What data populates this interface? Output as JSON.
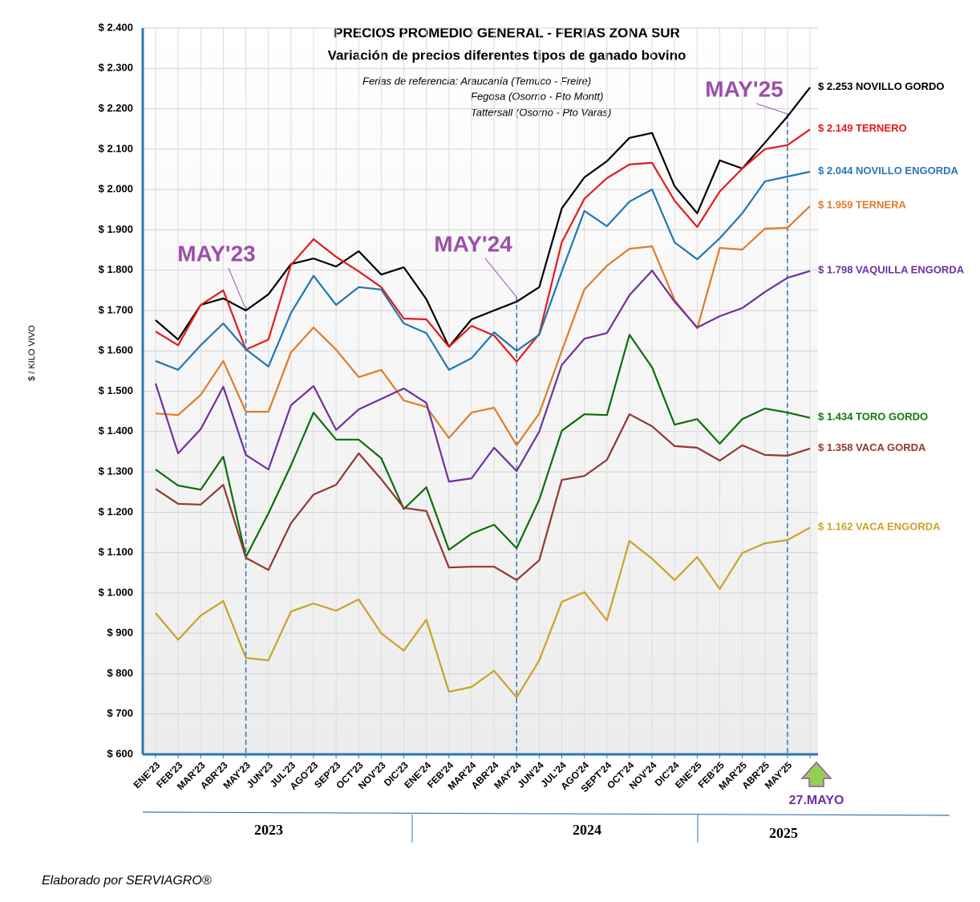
{
  "chart_data": {
    "type": "line",
    "title": "PRECIOS PROMEDIO GENERAL - FERIAS ZONA SUR",
    "subtitle": "Variación  de precios diferentes tipos de ganado bovino",
    "notes": [
      "Ferias de referencia: Araucanía (Temuco - Freire)",
      "Fegosa (Osorno - Pto Montt)",
      "Tattersall (Osorno - Pto Varas)"
    ],
    "ylabel": "$ / KILO VIVO",
    "categories": [
      "ENE'23",
      "FEB'23",
      "MAR'23",
      "ABR'23",
      "MAY'23",
      "JUN'23",
      "JUL'23",
      "AGO'23",
      "SEP'23",
      "OCT'23",
      "NOV'23",
      "DIC'23",
      "ENE'24",
      "FEB'24",
      "MAR'24",
      "ABR'24",
      "MAY'24",
      "JUN'24",
      "JUL'24",
      "AGO'24",
      "SEPT'24",
      "OCT'24",
      "NOV'24",
      "DIC'24",
      "ENE'25",
      "FEB'25",
      "MAR'25",
      "ABR'25",
      "MAY'25",
      null
    ],
    "ylim": [
      600,
      2400
    ],
    "yticks": [
      {
        "value": 600,
        "label": "$ 600"
      },
      {
        "value": 700,
        "label": "$ 700"
      },
      {
        "value": 800,
        "label": "$ 800"
      },
      {
        "value": 900,
        "label": "$ 900"
      },
      {
        "value": 1000,
        "label": "$ 1.000"
      },
      {
        "value": 1100,
        "label": "$ 1.100"
      },
      {
        "value": 1200,
        "label": "$ 1.200"
      },
      {
        "value": 1300,
        "label": "$ 1.300"
      },
      {
        "value": 1400,
        "label": "$ 1.400"
      },
      {
        "value": 1500,
        "label": "$ 1.500"
      },
      {
        "value": 1600,
        "label": "$ 1.600"
      },
      {
        "value": 1700,
        "label": "$ 1.700"
      },
      {
        "value": 1800,
        "label": "$ 1.800"
      },
      {
        "value": 1900,
        "label": "$ 1.900"
      },
      {
        "value": 2000,
        "label": "$ 2.000"
      },
      {
        "value": 2100,
        "label": "$ 2.100"
      },
      {
        "value": 2200,
        "label": "$ 2.200"
      },
      {
        "value": 2300,
        "label": "$ 2.300"
      },
      {
        "value": 2400,
        "label": "$ 2.400"
      }
    ],
    "grid": true,
    "annotations": [
      "MAY'23",
      "MAY'24",
      "MAY'25"
    ],
    "marker_label": "27.MAYO",
    "years": [
      "2023",
      "2024",
      "2025"
    ],
    "footer": "Elaborado por SERVIAGRO®",
    "series": [
      {
        "name": "NOVILLO GORDO",
        "color": "#000000",
        "label_color": "#000000",
        "values": [
          1676,
          1628,
          1714,
          1730,
          1700,
          1740,
          1815,
          1829,
          1809,
          1847,
          1789,
          1807,
          1728,
          1610,
          1678,
          1700,
          1722,
          1758,
          1953,
          2030,
          2070,
          2128,
          2140,
          2008,
          1941,
          2072,
          2052,
          2116,
          2181,
          2253
        ],
        "value_labels": [
          null,
          null,
          null,
          null,
          null,
          null,
          null,
          null,
          null,
          null,
          null,
          null,
          null,
          null,
          null,
          null,
          null,
          null,
          null,
          null,
          null,
          null,
          null,
          null,
          null,
          null,
          null,
          null,
          null,
          "$ 2.253"
        ]
      },
      {
        "name": "TERNERO",
        "color": "#e41a1c",
        "label_color": "#e41a1c",
        "values": [
          1648,
          1614,
          1714,
          1750,
          1603,
          1628,
          1813,
          1877,
          1833,
          1797,
          1758,
          1680,
          1678,
          1610,
          1662,
          1638,
          1573,
          1642,
          1869,
          1977,
          2028,
          2062,
          2066,
          1972,
          1907,
          1995,
          2052,
          2100,
          2110,
          2149
        ],
        "value_labels": [
          null,
          null,
          null,
          null,
          null,
          null,
          null,
          null,
          null,
          null,
          null,
          null,
          null,
          null,
          null,
          null,
          null,
          null,
          null,
          null,
          null,
          null,
          null,
          null,
          null,
          null,
          null,
          null,
          null,
          "$ 2.149"
        ]
      },
      {
        "name": "NOVILLO ENGORDA",
        "color": "#1f77b4",
        "label_color": "#2e75b6",
        "values": [
          1575,
          1553,
          1614,
          1668,
          1604,
          1561,
          1694,
          1786,
          1714,
          1758,
          1752,
          1668,
          1644,
          1553,
          1582,
          1646,
          1600,
          1640,
          1797,
          1947,
          1909,
          1970,
          2000,
          1869,
          1827,
          1879,
          1941,
          2020,
          2032,
          2044
        ],
        "value_labels": [
          null,
          null,
          null,
          null,
          null,
          null,
          null,
          null,
          null,
          null,
          null,
          null,
          null,
          null,
          null,
          null,
          null,
          null,
          null,
          null,
          null,
          null,
          null,
          null,
          null,
          null,
          null,
          null,
          null,
          "$ 2.044"
        ]
      },
      {
        "name": "TERNERA",
        "color": "#e07b28",
        "label_color": "#e07b28",
        "values": [
          1445,
          1441,
          1491,
          1575,
          1449,
          1449,
          1596,
          1658,
          1603,
          1535,
          1553,
          1477,
          1461,
          1384,
          1447,
          1459,
          1366,
          1445,
          1600,
          1752,
          1811,
          1853,
          1859,
          1726,
          1656,
          1855,
          1851,
          1903,
          1905,
          1959
        ],
        "value_labels": [
          null,
          null,
          null,
          null,
          null,
          null,
          null,
          null,
          null,
          null,
          null,
          null,
          null,
          null,
          null,
          null,
          null,
          null,
          null,
          null,
          null,
          null,
          null,
          null,
          null,
          null,
          null,
          null,
          null,
          "$ 1.959"
        ]
      },
      {
        "name": "VAQUILLA ENGORDA",
        "color": "#7030a0",
        "label_color": "#7030a0",
        "values": [
          1519,
          1346,
          1406,
          1511,
          1342,
          1306,
          1465,
          1513,
          1404,
          1455,
          1481,
          1507,
          1471,
          1276,
          1284,
          1360,
          1302,
          1400,
          1565,
          1630,
          1644,
          1738,
          1799,
          1722,
          1658,
          1686,
          1706,
          1746,
          1781,
          1798
        ],
        "value_labels": [
          null,
          null,
          null,
          null,
          null,
          null,
          null,
          null,
          null,
          null,
          null,
          null,
          null,
          null,
          null,
          null,
          null,
          null,
          null,
          null,
          null,
          null,
          null,
          null,
          null,
          null,
          null,
          null,
          null,
          "$ 1.798"
        ]
      },
      {
        "name": "TORO GORDO",
        "color": "#0b6e0b",
        "label_color": "#0b7a0b",
        "values": [
          1306,
          1266,
          1256,
          1338,
          1089,
          1197,
          1316,
          1447,
          1380,
          1380,
          1334,
          1208,
          1262,
          1107,
          1147,
          1169,
          1111,
          1231,
          1402,
          1443,
          1441,
          1640,
          1559,
          1417,
          1431,
          1370,
          1431,
          1457,
          1447,
          1434
        ],
        "value_labels": [
          null,
          null,
          null,
          null,
          null,
          null,
          null,
          null,
          null,
          null,
          null,
          null,
          null,
          null,
          null,
          null,
          null,
          null,
          null,
          null,
          null,
          null,
          null,
          null,
          null,
          null,
          null,
          null,
          null,
          "$ 1.434"
        ]
      },
      {
        "name": "VACA GORDA",
        "color": "#943634",
        "label_color": "#943634",
        "values": [
          1258,
          1221,
          1219,
          1268,
          1087,
          1057,
          1173,
          1244,
          1268,
          1346,
          1282,
          1211,
          1203,
          1063,
          1065,
          1065,
          1032,
          1081,
          1280,
          1290,
          1330,
          1443,
          1413,
          1364,
          1360,
          1328,
          1366,
          1342,
          1340,
          1358
        ],
        "value_labels": [
          null,
          null,
          null,
          null,
          null,
          null,
          null,
          null,
          null,
          null,
          null,
          null,
          null,
          null,
          null,
          null,
          null,
          null,
          null,
          null,
          null,
          null,
          null,
          null,
          null,
          null,
          null,
          null,
          null,
          "$ 1.358"
        ]
      },
      {
        "name": "VACA ENGORDA",
        "color": "#c9a227",
        "label_color": "#c9a227",
        "values": [
          950,
          884,
          944,
          980,
          839,
          833,
          954,
          974,
          956,
          984,
          900,
          857,
          934,
          755,
          767,
          807,
          741,
          833,
          978,
          1002,
          932,
          1129,
          1085,
          1032,
          1089,
          1010,
          1099,
          1123,
          1131,
          1162
        ],
        "value_labels": [
          null,
          null,
          null,
          null,
          null,
          null,
          null,
          null,
          null,
          null,
          null,
          null,
          null,
          null,
          null,
          null,
          null,
          null,
          null,
          null,
          null,
          null,
          null,
          null,
          null,
          null,
          null,
          null,
          null,
          "$ 1.162"
        ]
      }
    ]
  }
}
